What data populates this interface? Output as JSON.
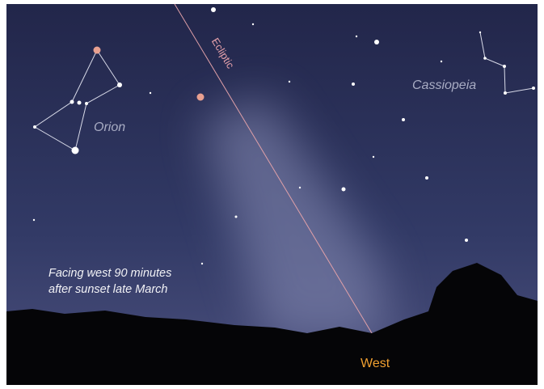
{
  "labels": {
    "ecliptic": "Ecliptic",
    "orion": "Orion",
    "cassiopeia": "Cassiopeia",
    "caption": [
      "Facing west 90 minutes",
      "after sunset late March"
    ],
    "direction": "West"
  }
}
